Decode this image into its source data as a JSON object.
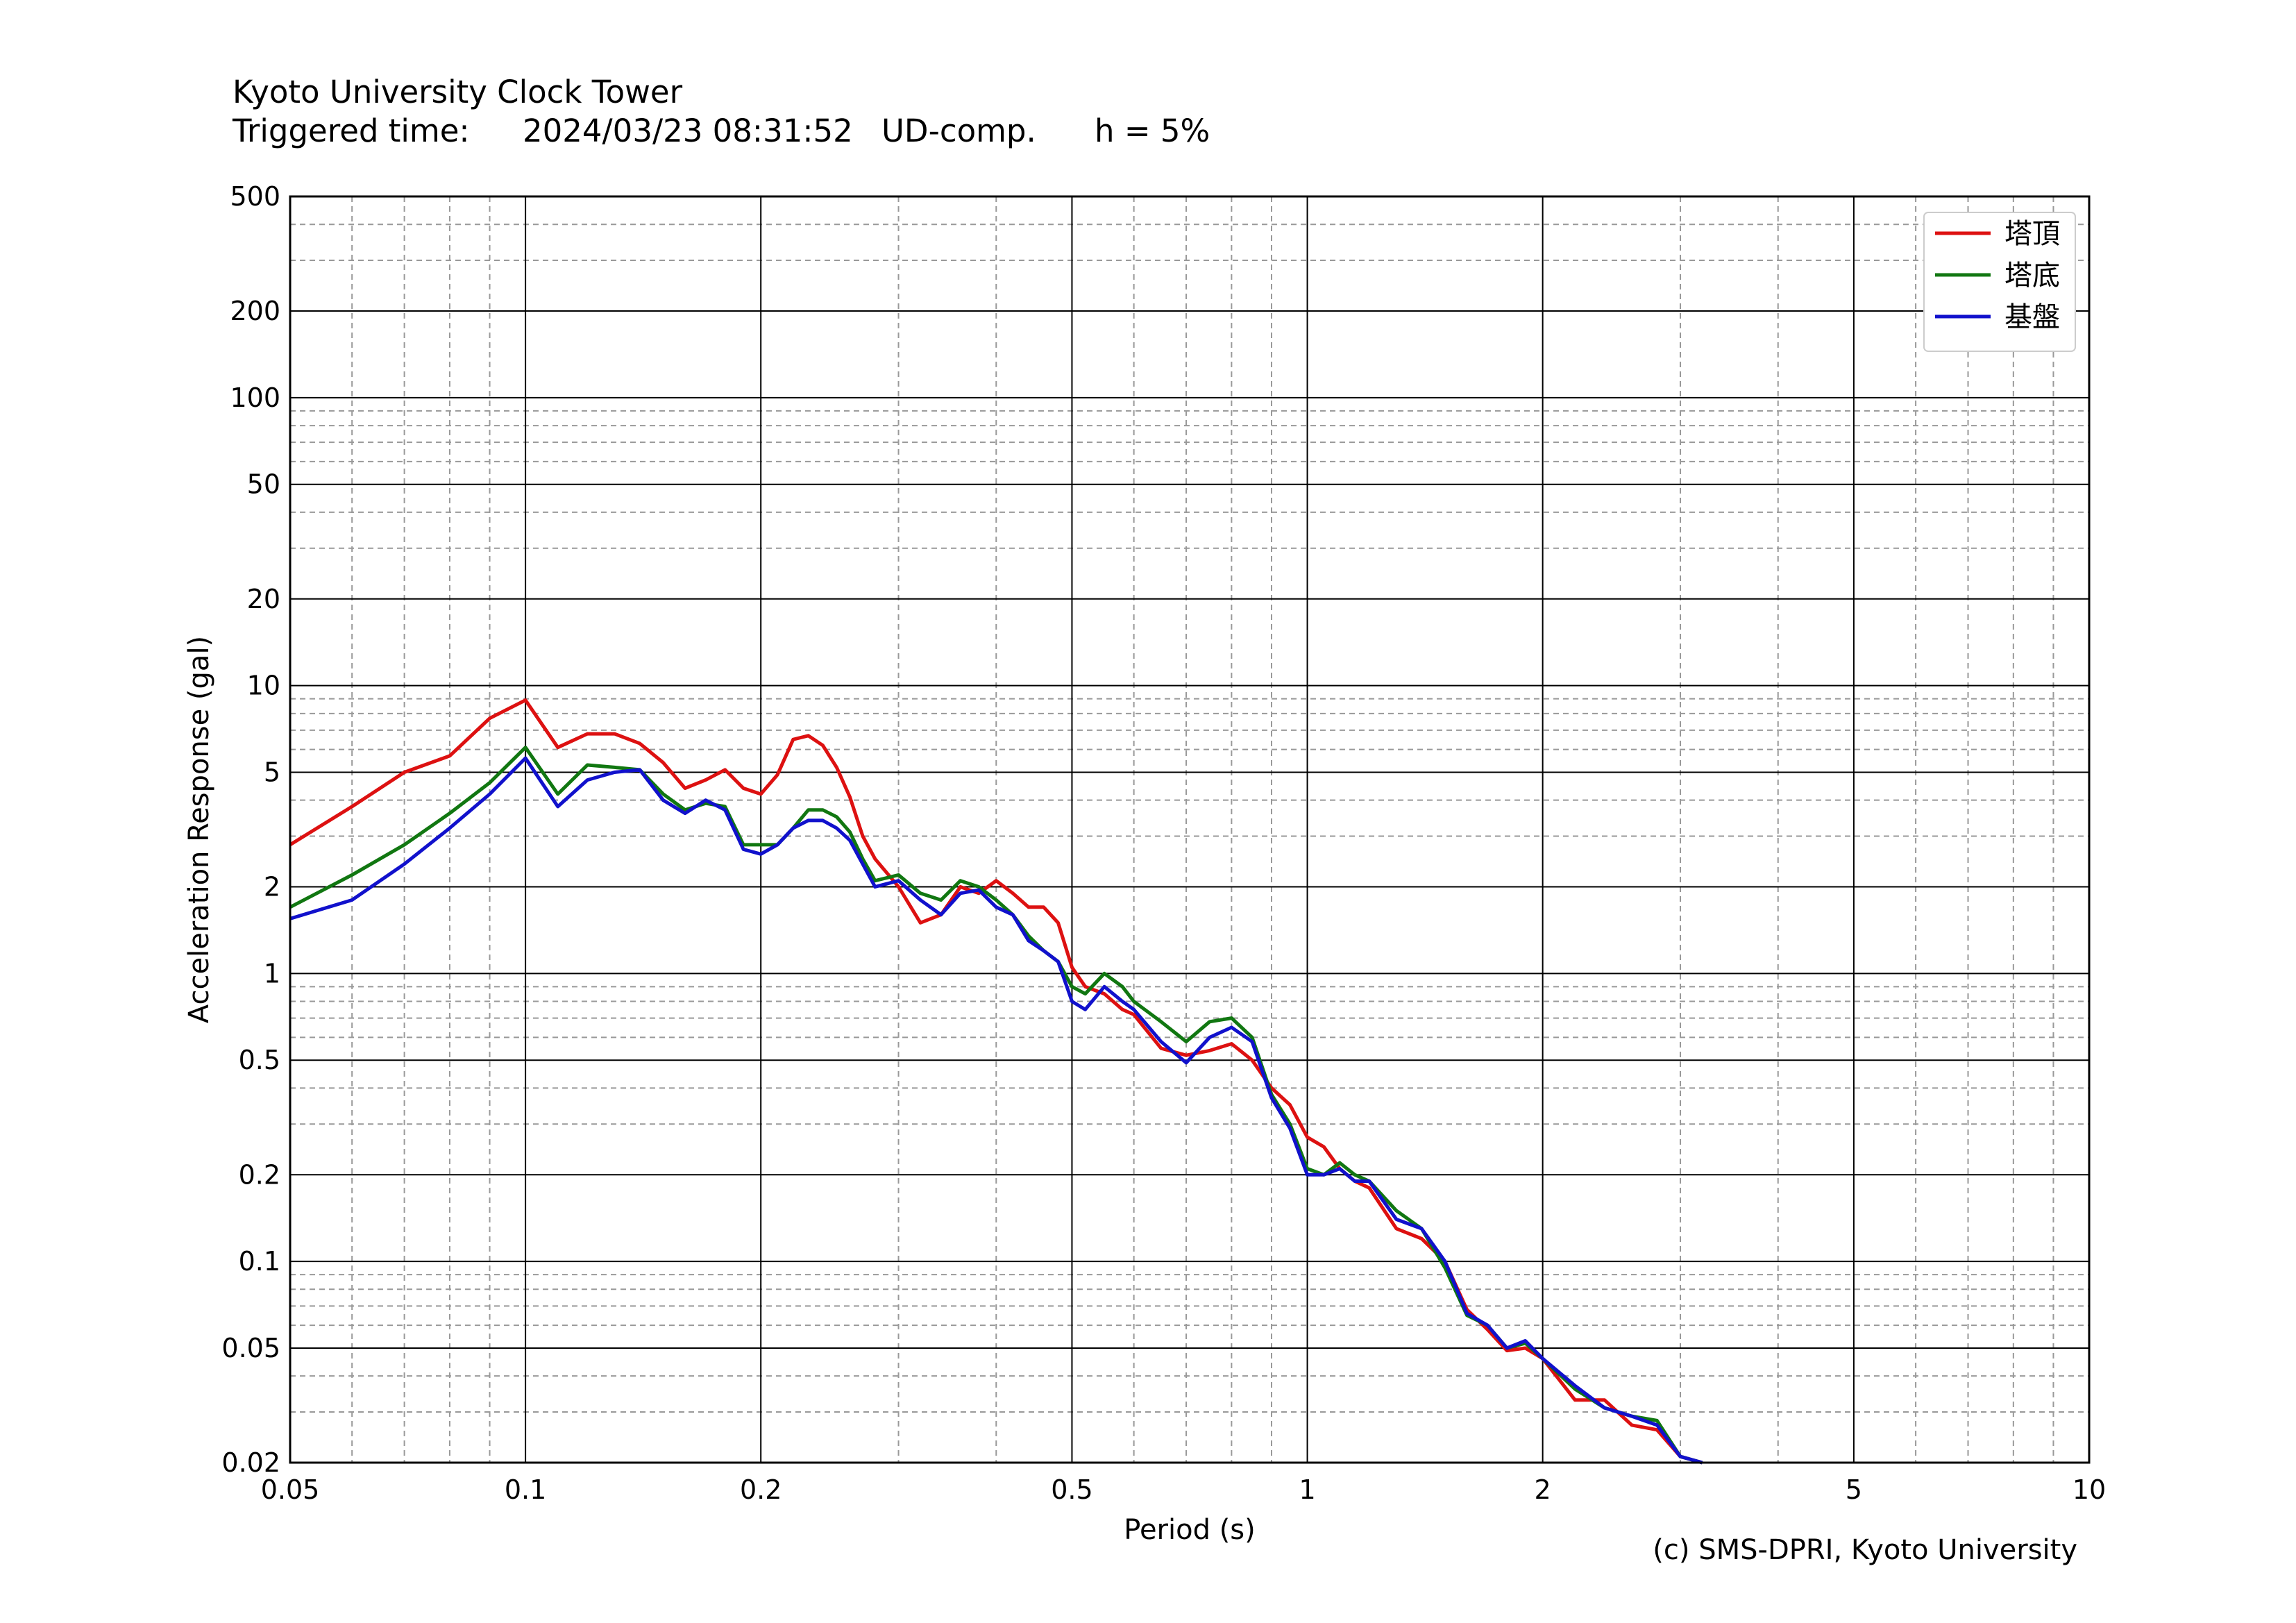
{
  "header": {
    "title": "Kyoto University Clock Tower",
    "triggered_label": "Triggered time:",
    "triggered_value": "2024/03/23 08:31:52",
    "component": "UD-comp.",
    "damping": "h = 5%"
  },
  "credit": "(c) SMS-DPRI, Kyoto University",
  "colors": {
    "red": "#dd1111",
    "green": "#117711",
    "blue": "#1111cc"
  },
  "chart_data": {
    "type": "line",
    "xlabel": "Period (s)",
    "ylabel": "Acceleration Response (gal)",
    "xscale": "log",
    "yscale": "log",
    "xlim": [
      0.05,
      10
    ],
    "ylim": [
      0.02,
      500
    ],
    "xticks": [
      0.05,
      0.1,
      0.2,
      0.5,
      1,
      2,
      5,
      10
    ],
    "xtick_labels": [
      "0.05",
      "0.1",
      "0.2",
      "0.5",
      "1",
      "2",
      "5",
      "10"
    ],
    "yticks": [
      0.02,
      0.05,
      0.1,
      0.2,
      0.5,
      1,
      2,
      5,
      10,
      20,
      50,
      100,
      200,
      500
    ],
    "ytick_labels": [
      "0.02",
      "0.05",
      "0.1",
      "0.2",
      "0.5",
      "1",
      "2",
      "5",
      "10",
      "20",
      "50",
      "100",
      "200",
      "500"
    ],
    "grid": true,
    "legend_position": "top-right",
    "series": [
      {
        "name": "塔頂",
        "color": "#dd1111",
        "x": [
          0.05,
          0.06,
          0.07,
          0.08,
          0.09,
          0.1,
          0.11,
          0.12,
          0.13,
          0.14,
          0.15,
          0.16,
          0.17,
          0.18,
          0.19,
          0.2,
          0.21,
          0.22,
          0.23,
          0.24,
          0.25,
          0.26,
          0.27,
          0.28,
          0.3,
          0.32,
          0.34,
          0.36,
          0.38,
          0.4,
          0.42,
          0.44,
          0.46,
          0.48,
          0.5,
          0.52,
          0.55,
          0.58,
          0.6,
          0.65,
          0.7,
          0.75,
          0.8,
          0.85,
          0.9,
          0.95,
          1.0,
          1.05,
          1.1,
          1.15,
          1.2,
          1.3,
          1.4,
          1.5,
          1.6,
          1.7,
          1.8,
          1.9,
          2.0,
          2.2,
          2.4,
          2.6,
          2.8,
          3.0,
          3.2
        ],
        "y": [
          2.8,
          3.8,
          5.0,
          5.7,
          7.7,
          8.9,
          6.1,
          6.8,
          6.8,
          6.3,
          5.4,
          4.4,
          4.7,
          5.1,
          4.4,
          4.2,
          4.9,
          6.5,
          6.7,
          6.2,
          5.2,
          4.1,
          3.0,
          2.5,
          2.0,
          1.5,
          1.6,
          2.0,
          1.9,
          2.1,
          1.9,
          1.7,
          1.7,
          1.5,
          1.05,
          0.9,
          0.85,
          0.75,
          0.72,
          0.55,
          0.52,
          0.54,
          0.57,
          0.5,
          0.4,
          0.35,
          0.27,
          0.25,
          0.21,
          0.19,
          0.18,
          0.13,
          0.12,
          0.1,
          0.068,
          0.058,
          0.049,
          0.05,
          0.046,
          0.033,
          0.033,
          0.027,
          0.026,
          0.021,
          0.02
        ]
      },
      {
        "name": "塔底",
        "color": "#117711",
        "x": [
          0.05,
          0.06,
          0.07,
          0.08,
          0.09,
          0.1,
          0.11,
          0.12,
          0.13,
          0.14,
          0.15,
          0.16,
          0.17,
          0.18,
          0.19,
          0.2,
          0.21,
          0.22,
          0.23,
          0.24,
          0.25,
          0.26,
          0.27,
          0.28,
          0.3,
          0.32,
          0.34,
          0.36,
          0.38,
          0.4,
          0.42,
          0.44,
          0.46,
          0.48,
          0.5,
          0.52,
          0.55,
          0.58,
          0.6,
          0.65,
          0.7,
          0.75,
          0.8,
          0.85,
          0.9,
          0.95,
          1.0,
          1.05,
          1.1,
          1.15,
          1.2,
          1.3,
          1.4,
          1.5,
          1.6,
          1.7,
          1.8,
          1.9,
          2.0,
          2.2,
          2.4,
          2.6,
          2.8,
          3.0,
          3.2
        ],
        "y": [
          1.7,
          2.2,
          2.8,
          3.6,
          4.6,
          6.1,
          4.2,
          5.3,
          5.2,
          5.1,
          4.2,
          3.7,
          3.9,
          3.8,
          2.8,
          2.8,
          2.8,
          3.2,
          3.7,
          3.7,
          3.5,
          3.1,
          2.5,
          2.1,
          2.2,
          1.9,
          1.8,
          2.1,
          2.0,
          1.8,
          1.6,
          1.35,
          1.2,
          1.1,
          0.9,
          0.85,
          1.0,
          0.9,
          0.8,
          0.68,
          0.58,
          0.68,
          0.7,
          0.6,
          0.38,
          0.3,
          0.21,
          0.2,
          0.22,
          0.2,
          0.19,
          0.15,
          0.13,
          0.095,
          0.065,
          0.06,
          0.05,
          0.052,
          0.046,
          0.036,
          0.031,
          0.029,
          0.028,
          0.021,
          0.02
        ]
      },
      {
        "name": "基盤",
        "color": "#1111cc",
        "x": [
          0.05,
          0.06,
          0.07,
          0.08,
          0.09,
          0.1,
          0.11,
          0.12,
          0.13,
          0.14,
          0.15,
          0.16,
          0.17,
          0.18,
          0.19,
          0.2,
          0.21,
          0.22,
          0.23,
          0.24,
          0.25,
          0.26,
          0.27,
          0.28,
          0.3,
          0.32,
          0.34,
          0.36,
          0.38,
          0.4,
          0.42,
          0.44,
          0.46,
          0.48,
          0.5,
          0.52,
          0.55,
          0.58,
          0.6,
          0.65,
          0.7,
          0.75,
          0.8,
          0.85,
          0.9,
          0.95,
          1.0,
          1.05,
          1.1,
          1.15,
          1.2,
          1.3,
          1.4,
          1.5,
          1.6,
          1.7,
          1.8,
          1.9,
          2.0,
          2.2,
          2.4,
          2.6,
          2.8,
          3.0,
          3.2
        ],
        "y": [
          1.55,
          1.8,
          2.4,
          3.2,
          4.2,
          5.6,
          3.8,
          4.7,
          5.0,
          5.1,
          4.0,
          3.6,
          4.0,
          3.7,
          2.7,
          2.6,
          2.8,
          3.2,
          3.4,
          3.4,
          3.2,
          2.9,
          2.4,
          2.0,
          2.1,
          1.8,
          1.6,
          1.9,
          1.95,
          1.7,
          1.6,
          1.3,
          1.2,
          1.1,
          0.8,
          0.75,
          0.9,
          0.8,
          0.75,
          0.58,
          0.49,
          0.6,
          0.65,
          0.58,
          0.37,
          0.29,
          0.2,
          0.2,
          0.21,
          0.19,
          0.19,
          0.14,
          0.13,
          0.1,
          0.066,
          0.06,
          0.05,
          0.053,
          0.046,
          0.037,
          0.031,
          0.029,
          0.027,
          0.021,
          0.02
        ]
      }
    ]
  }
}
